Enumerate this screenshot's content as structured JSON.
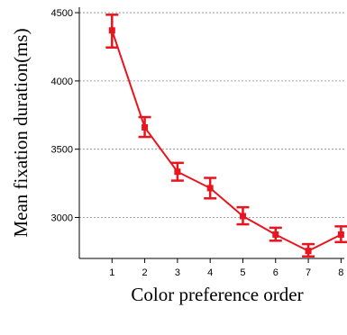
{
  "chart_data": {
    "type": "line",
    "xlabel": "Color preference order",
    "ylabel": "Mean fixation duration(ms)",
    "x": [
      1,
      2,
      3,
      4,
      5,
      6,
      7,
      8
    ],
    "x_tick_labels": [
      "1",
      "2",
      "3",
      "4",
      "5",
      "6",
      "7",
      "8"
    ],
    "xlim": [
      0,
      8.1
    ],
    "ylim": [
      2700,
      4540
    ],
    "y_ticks": [
      3000,
      3500,
      4000,
      4500
    ],
    "y_tick_labels": [
      "3000",
      "3500",
      "4000",
      "4500"
    ],
    "grid": "horizontal dotted lines at y ticks",
    "series": [
      {
        "values": [
          4370,
          3660,
          3335,
          3215,
          3010,
          2875,
          2755,
          2875
        ],
        "error_low": [
          4245,
          3590,
          3270,
          3140,
          2950,
          2830,
          2715,
          2820
        ],
        "error_high": [
          4485,
          3735,
          3400,
          3290,
          3075,
          2925,
          2805,
          2935
        ],
        "color": "#e8141e"
      }
    ]
  }
}
